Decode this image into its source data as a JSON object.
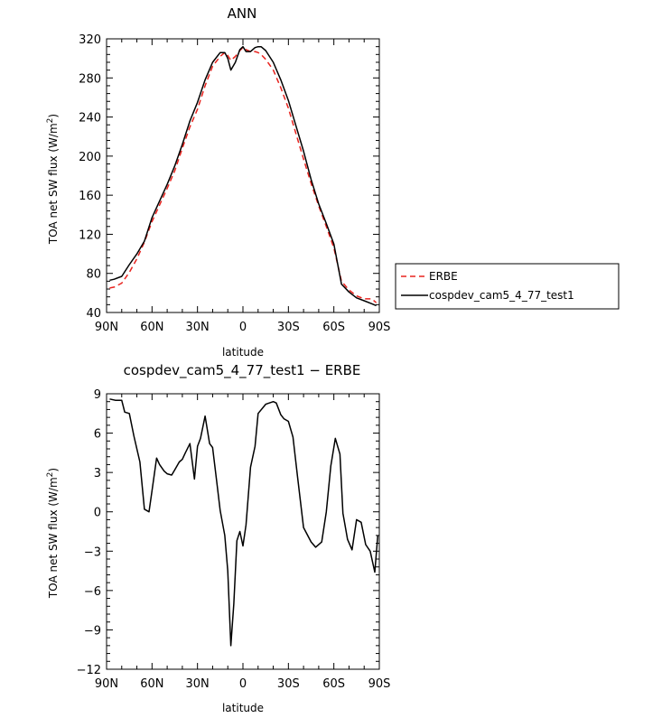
{
  "chart_data": [
    {
      "type": "line",
      "title": "ANN",
      "xlabel": "latitude",
      "ylabel": "TOA net SW flux (W/m²)",
      "ylabel_main": "TOA net SW flux (W/m",
      "ylabel_sup": "2",
      "ylabel_tail": ")",
      "xlim": [
        90,
        -90
      ],
      "ylim": [
        40,
        320
      ],
      "xticks": [
        90,
        60,
        30,
        0,
        -30,
        -60,
        -90
      ],
      "xtick_labels": [
        "90N",
        "60N",
        "30N",
        "0",
        "30S",
        "60S",
        "90S"
      ],
      "yticks": [
        40,
        80,
        120,
        160,
        200,
        240,
        280,
        320
      ],
      "ytick_labels": [
        "40",
        "80",
        "120",
        "160",
        "200",
        "240",
        "280",
        "320"
      ],
      "legend_position": "right",
      "x": [
        88,
        85,
        80,
        75,
        70,
        65,
        60,
        55,
        50,
        45,
        40,
        35,
        30,
        25,
        20,
        15,
        12,
        10,
        8,
        5,
        2,
        0,
        -2,
        -5,
        -8,
        -10,
        -12,
        -15,
        -20,
        -25,
        -30,
        -35,
        -40,
        -45,
        -50,
        -55,
        -60,
        -65,
        -70,
        -75,
        -80,
        -85,
        -88
      ],
      "series": [
        {
          "name": "ERBE",
          "color": "#e8231e",
          "dash": "dashed",
          "values": [
            65,
            66,
            70,
            81,
            95,
            112,
            133,
            150,
            167,
            185,
            208,
            230,
            248,
            272,
            292,
            302,
            306,
            303,
            298,
            302,
            308,
            311,
            309,
            307,
            307,
            306,
            304,
            299,
            288,
            270,
            249,
            223,
            197,
            172,
            149,
            128,
            106,
            72,
            63,
            57,
            54,
            54,
            50
          ]
        },
        {
          "name": "cospdev_cam5_4_77_test1",
          "color": "#000000",
          "dash": "solid",
          "values": [
            73,
            74,
            77,
            89,
            100,
            113,
            137,
            154,
            171,
            190,
            212,
            236,
            255,
            278,
            296,
            306,
            306,
            300,
            288,
            296,
            309,
            312,
            307,
            307,
            311,
            312,
            312,
            308,
            296,
            278,
            257,
            231,
            205,
            176,
            151,
            131,
            110,
            69,
            61,
            55,
            52,
            49,
            47
          ]
        }
      ]
    },
    {
      "type": "line",
      "title": "cospdev_cam5_4_77_test1 − ERBE",
      "xlabel": "latitude",
      "ylabel": "TOA net SW flux (W/m²)",
      "ylabel_main": "TOA net SW flux (W/m",
      "ylabel_sup": "2",
      "ylabel_tail": ")",
      "xlim": [
        90,
        -90
      ],
      "ylim": [
        -12,
        9
      ],
      "xticks": [
        90,
        60,
        30,
        0,
        -30,
        -60,
        -90
      ],
      "xtick_labels": [
        "90N",
        "60N",
        "30N",
        "0",
        "30S",
        "60S",
        "90S"
      ],
      "yticks": [
        -12,
        -9,
        -6,
        -3,
        0,
        3,
        6,
        9
      ],
      "ytick_labels": [
        "−12",
        "−9",
        "−6",
        "−3",
        "0",
        "3",
        "6",
        "9"
      ],
      "x": [
        88,
        84,
        82,
        80,
        78,
        75,
        72,
        68,
        65,
        62,
        60,
        57,
        55,
        52,
        50,
        47,
        45,
        42,
        40,
        38,
        35,
        32,
        30,
        28,
        25,
        22,
        20,
        17,
        15,
        12,
        10,
        8,
        6,
        4,
        2,
        0,
        -2,
        -5,
        -8,
        -10,
        -15,
        -20,
        -22,
        -25,
        -27,
        -30,
        -33,
        -36,
        -40,
        -45,
        -48,
        -52,
        -55,
        -58,
        -61,
        -64,
        -66,
        -69,
        -72,
        -75,
        -78,
        -81,
        -84,
        -87,
        -89
      ],
      "series": [
        {
          "name": "",
          "color": "#000000",
          "dash": "solid",
          "values": [
            8.6,
            8.5,
            8.5,
            8.5,
            7.6,
            7.5,
            5.8,
            3.8,
            0.2,
            0.0,
            1.6,
            4.1,
            3.6,
            3.1,
            2.9,
            2.8,
            3.2,
            3.8,
            4.0,
            4.5,
            5.2,
            2.5,
            5.0,
            5.6,
            7.3,
            5.2,
            4.9,
            2.0,
            0.1,
            -1.8,
            -4.5,
            -10.2,
            -7.0,
            -2.2,
            -1.5,
            -2.6,
            -1.0,
            3.4,
            5.0,
            7.5,
            8.2,
            8.4,
            8.3,
            7.4,
            7.1,
            6.9,
            5.7,
            2.7,
            -1.2,
            -2.3,
            -2.7,
            -2.3,
            0.0,
            3.5,
            5.6,
            4.4,
            -0.1,
            -2.1,
            -2.9,
            -0.6,
            -0.8,
            -2.5,
            -3.0,
            -4.6,
            -1.8
          ]
        }
      ]
    }
  ]
}
